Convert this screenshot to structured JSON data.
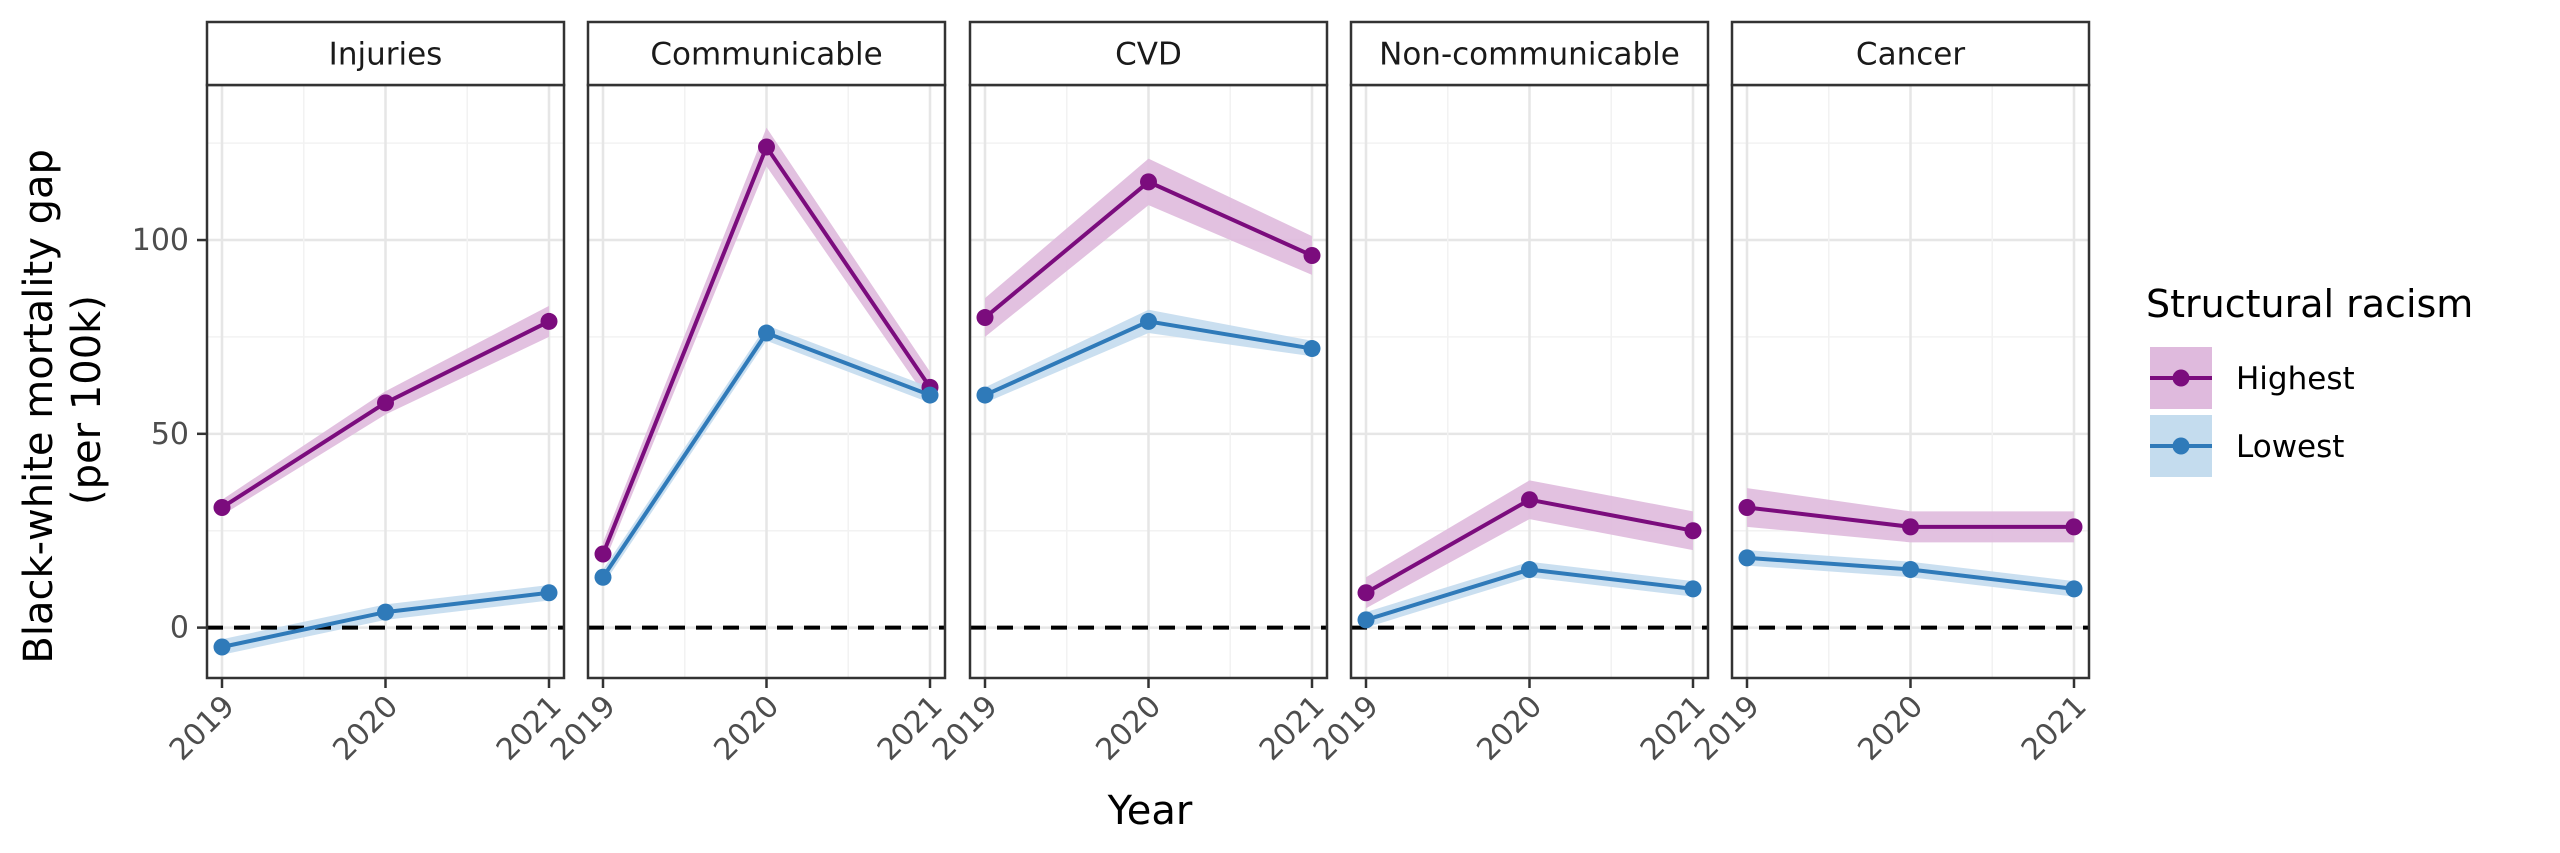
{
  "chart_data": {
    "type": "line",
    "facets": [
      "Injuries",
      "Communicable",
      "CVD",
      "Non-communicable",
      "Cancer"
    ],
    "x": [
      "2019",
      "2020",
      "2021"
    ],
    "xlabel": "Year",
    "ylabel_line1": "Black-white mortality gap",
    "ylabel_line2": "(per 100k)",
    "ylim": [
      -13,
      140
    ],
    "yticks": [
      0,
      50,
      100
    ],
    "reference_line": 0,
    "legend": {
      "title": "Structural racism",
      "placement": "right"
    },
    "series": [
      {
        "name": "Highest",
        "color": "#7b0c7d",
        "ribbon_color": "#dfbadd",
        "values": {
          "Injuries": [
            31,
            58,
            79
          ],
          "Communicable": [
            19,
            124,
            62
          ],
          "CVD": [
            80,
            115,
            96
          ],
          "Non-communicable": [
            9,
            33,
            25
          ],
          "Cancer": [
            31,
            26,
            26
          ]
        },
        "ci_halfwidth": {
          "Injuries": [
            2,
            3,
            4
          ],
          "Communicable": [
            3,
            5,
            4
          ],
          "CVD": [
            5,
            6,
            5
          ],
          "Non-communicable": [
            4,
            5,
            5
          ],
          "Cancer": [
            5,
            4,
            4
          ]
        }
      },
      {
        "name": "Lowest",
        "color": "#2f7ab9",
        "ribbon_color": "#c4dcee",
        "values": {
          "Injuries": [
            -5,
            4,
            9
          ],
          "Communicable": [
            13,
            76,
            60
          ],
          "CVD": [
            60,
            79,
            72
          ],
          "Non-communicable": [
            2,
            15,
            10
          ],
          "Cancer": [
            18,
            15,
            10
          ]
        },
        "ci_halfwidth": {
          "Injuries": [
            2,
            2,
            2
          ],
          "Communicable": [
            2,
            2,
            2
          ],
          "CVD": [
            2,
            3,
            2
          ],
          "Non-communicable": [
            2,
            2,
            2
          ],
          "Cancer": [
            2,
            2,
            2
          ]
        }
      }
    ]
  }
}
